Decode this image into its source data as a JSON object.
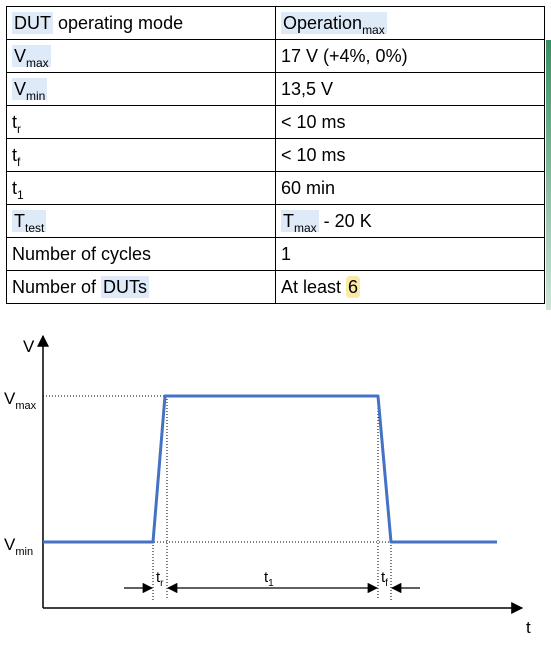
{
  "table": {
    "header": {
      "param_pre": "",
      "param_hl": "DUT",
      "param_post": " operating mode",
      "value_hl": "Operation",
      "value_sub": "max"
    },
    "rows": [
      {
        "param_main": "V",
        "param_sub": "max",
        "value_main": "17 V (+4%, 0%)",
        "value_sub": "",
        "value_tail": "",
        "value_highlight": ""
      },
      {
        "param_main": "V",
        "param_sub": "min",
        "value_main": "13,5 V",
        "value_sub": "",
        "value_tail": "",
        "value_highlight": ""
      },
      {
        "param_main": "t",
        "param_sub": "r",
        "value_main": "< 10 ms",
        "value_sub": "",
        "value_tail": "",
        "value_highlight": ""
      },
      {
        "param_main": "t",
        "param_sub": "f",
        "value_main": "< 10 ms",
        "value_sub": "",
        "value_tail": "",
        "value_highlight": ""
      },
      {
        "param_main": "t",
        "param_sub": "1",
        "value_main": "60 min",
        "value_sub": "",
        "value_tail": "",
        "value_highlight": ""
      },
      {
        "param_main": "T",
        "param_sub": "test",
        "value_main": "T",
        "value_sub": "max",
        "value_tail": " - 20 K",
        "value_highlight": ""
      },
      {
        "param_main": "Number of cycles",
        "param_sub": "",
        "value_main": "1",
        "value_sub": "",
        "value_tail": "",
        "value_highlight": ""
      },
      {
        "param_main": "Number of ",
        "param_sub": "",
        "param_hl": "DUTs",
        "value_main": "At least ",
        "value_sub": "",
        "value_tail": "",
        "value_highlight": "6"
      }
    ]
  },
  "diagram": {
    "y_axis_label": "V",
    "x_axis_label": "t",
    "vmax_label": "V",
    "vmax_sub": "max",
    "vmin_label": "V",
    "vmin_sub": "min",
    "tr_label": "t",
    "tr_sub": "r",
    "t1_label": "t",
    "t1_sub": "1",
    "tf_label": "t",
    "tf_sub": "f",
    "line_color": "#4472c4"
  }
}
